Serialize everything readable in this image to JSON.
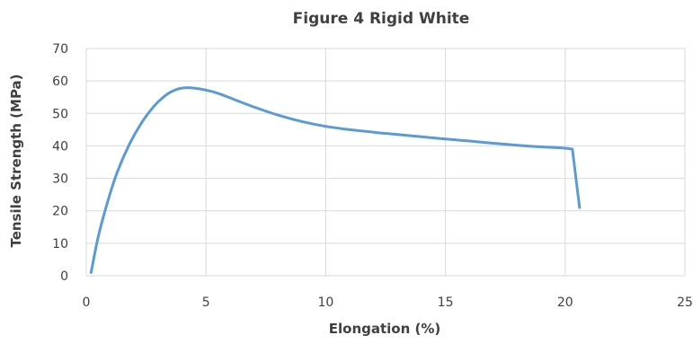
{
  "chart_data": {
    "type": "line",
    "title": "Figure 4 Rigid White",
    "xlabel": "Elongation (%)",
    "ylabel": "Tensile Strength (MPa)",
    "xlim": [
      0,
      25
    ],
    "ylim": [
      0,
      70
    ],
    "xticks": [
      0,
      5,
      10,
      15,
      20,
      25
    ],
    "yticks": [
      0,
      10,
      20,
      30,
      40,
      50,
      60,
      70
    ],
    "xtick_labels": [
      "0",
      "5",
      "10",
      "15",
      "20",
      "25"
    ],
    "ytick_labels": [
      "0",
      "10",
      "20",
      "30",
      "40",
      "50",
      "60",
      "70"
    ],
    "grid": "vertical and horizontal",
    "legend": "none",
    "series": [
      {
        "color": "#5b9bd5",
        "x": [
          0.2,
          0.5,
          0.9,
          1.3,
          1.8,
          2.3,
          2.8,
          3.3,
          3.7,
          4.1,
          4.5,
          5.0,
          5.5,
          6.0,
          7.0,
          8.0,
          9.0,
          10.0,
          11.0,
          12.0,
          13.0,
          14.0,
          15.0,
          16.0,
          17.0,
          18.0,
          19.0,
          20.0,
          20.3,
          20.6
        ],
        "y": [
          1,
          12,
          23,
          32,
          40.5,
          47,
          52,
          55.5,
          57.2,
          57.9,
          57.8,
          57.2,
          56.2,
          54.8,
          52,
          49.5,
          47.5,
          46,
          45,
          44.2,
          43.5,
          42.8,
          42.1,
          41.5,
          40.8,
          40.2,
          39.7,
          39.3,
          39,
          21
        ]
      }
    ]
  }
}
